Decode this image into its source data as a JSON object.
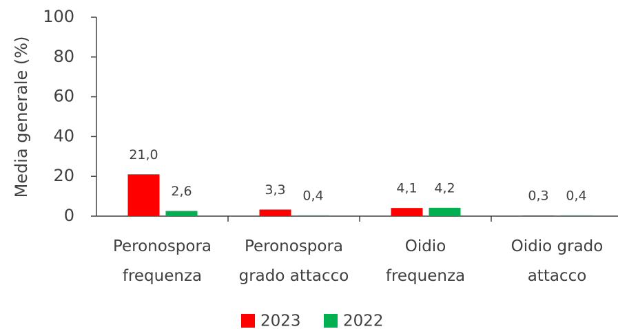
{
  "chart_data": {
    "type": "bar",
    "y_axis_label": "Media generale (%)",
    "categories": [
      "Peronospora frequenza",
      "Peronospora grado attacco",
      "Oidio frequenza",
      "Oidio grado attacco"
    ],
    "series": [
      {
        "name": "2023",
        "color": "#ff0000",
        "values": [
          21.0,
          3.3,
          4.1,
          0.3
        ],
        "value_labels": [
          "21,0",
          "3,3",
          "4,1",
          "0,3"
        ]
      },
      {
        "name": "2022",
        "color": "#00b050",
        "values": [
          2.6,
          0.4,
          4.2,
          0.4
        ],
        "value_labels": [
          "2,6",
          "0,4",
          "4,2",
          "0,4"
        ]
      }
    ],
    "ylim": [
      0,
      100
    ],
    "yticks": [
      0,
      20,
      40,
      60,
      80,
      100
    ],
    "legend": "bottom"
  }
}
